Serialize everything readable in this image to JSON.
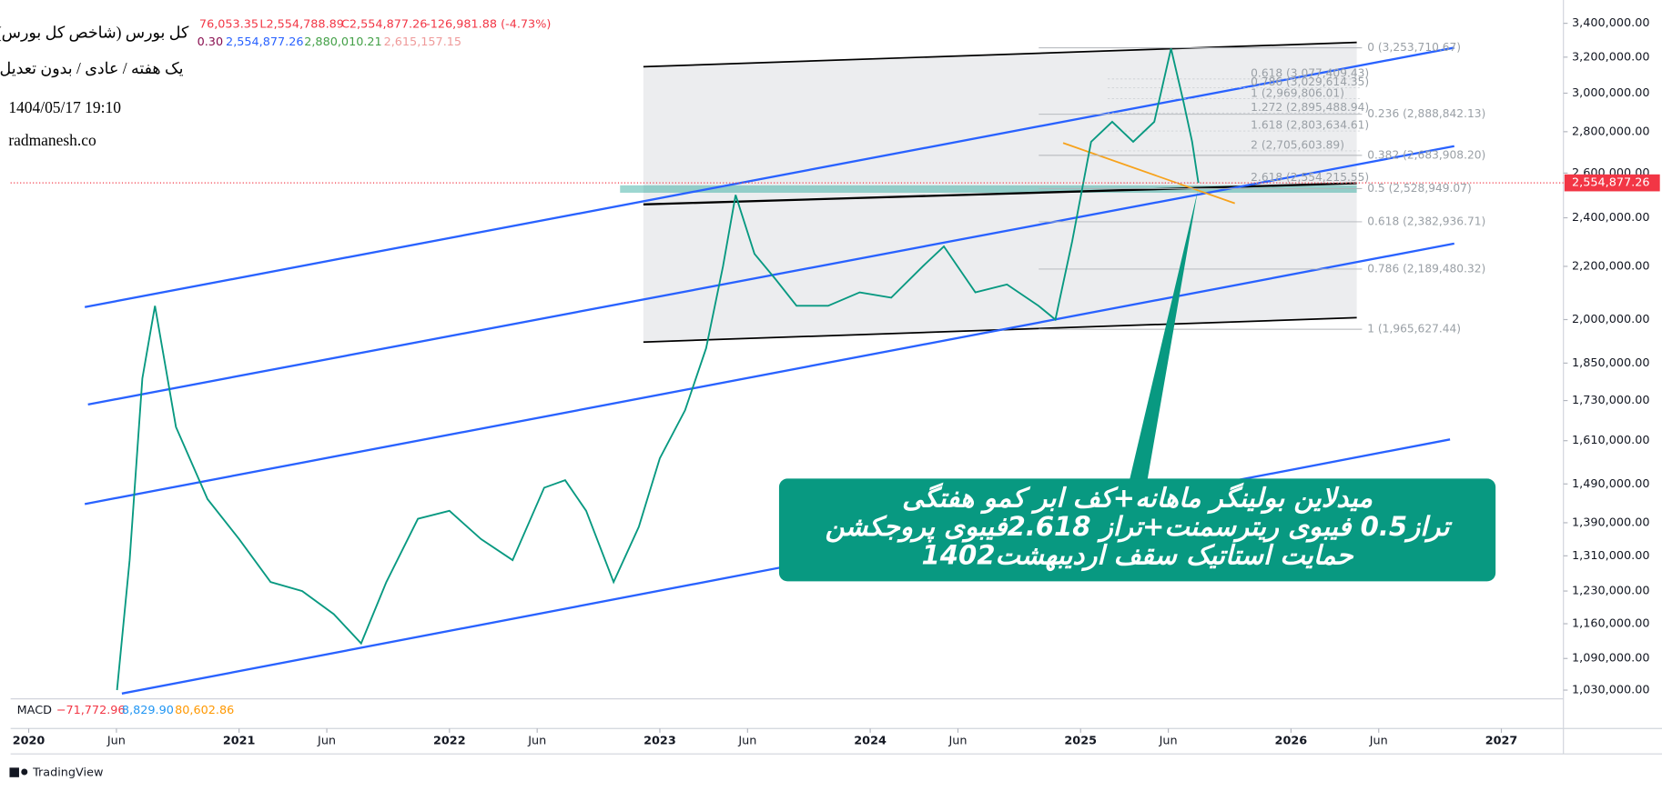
{
  "header": {
    "title": "کل بورس (شاخص کل بورس)",
    "subtitle": "یک هفته / عادی / بدون تعدیل",
    "datetime": "1404/05/17 19:10",
    "site": "radmanesh.co",
    "ohlc": [
      "76,053.35",
      "L2,554,788.89",
      "C2,554,877.26",
      "-126,981.88 (-4.73%)"
    ],
    "indicators": [
      "0.30",
      "2,554,877.26",
      "2,880,010.21",
      "2,615,157.15"
    ]
  },
  "chart_data": {
    "type": "line",
    "color": "#089981",
    "log_scale": true,
    "x": [
      2020.42,
      2020.48,
      2020.54,
      2020.6,
      2020.7,
      2020.85,
      2021.0,
      2021.15,
      2021.3,
      2021.45,
      2021.58,
      2021.7,
      2021.85,
      2022.0,
      2022.15,
      2022.3,
      2022.45,
      2022.55,
      2022.65,
      2022.78,
      2022.9,
      2023.0,
      2023.12,
      2023.22,
      2023.3,
      2023.36,
      2023.45,
      2023.55,
      2023.65,
      2023.8,
      2023.95,
      2024.1,
      2024.25,
      2024.35,
      2024.5,
      2024.65,
      2024.8,
      2024.88,
      2024.96,
      2025.05,
      2025.15,
      2025.25,
      2025.35,
      2025.43,
      2025.49,
      2025.53,
      2025.56
    ],
    "values": [
      1030000,
      1300000,
      1800000,
      2050000,
      1650000,
      1450000,
      1350000,
      1250000,
      1230000,
      1180000,
      1120000,
      1250000,
      1400000,
      1420000,
      1350000,
      1300000,
      1480000,
      1500000,
      1420000,
      1250000,
      1380000,
      1560000,
      1700000,
      1900000,
      2200000,
      2500000,
      2250000,
      2150000,
      2050000,
      2050000,
      2100000,
      2080000,
      2200000,
      2280000,
      2100000,
      2130000,
      2050000,
      2000000,
      2300000,
      2750000,
      2850000,
      2750000,
      2850000,
      3250000,
      2950000,
      2750000,
      2554877.26
    ],
    "xlim": [
      2019.914,
      2027.295
    ],
    "xticks": [
      {
        "value": 2020,
        "label": "2020"
      },
      {
        "value": 2020.417,
        "label": "Jun"
      },
      {
        "value": 2021,
        "label": "2021"
      },
      {
        "value": 2021.417,
        "label": "Jun"
      },
      {
        "value": 2022,
        "label": "2022"
      },
      {
        "value": 2022.417,
        "label": "Jun"
      },
      {
        "value": 2023,
        "label": "2023"
      },
      {
        "value": 2023.417,
        "label": "Jun"
      },
      {
        "value": 2024,
        "label": "2024"
      },
      {
        "value": 2024.417,
        "label": "Jun"
      },
      {
        "value": 2025,
        "label": "2025"
      },
      {
        "value": 2025.417,
        "label": "Jun"
      },
      {
        "value": 2026,
        "label": "2026"
      },
      {
        "value": 2026.417,
        "label": "Jun"
      },
      {
        "value": 2027,
        "label": "2027"
      }
    ],
    "ylim": [
      1014000,
      3478000
    ],
    "yticks": [
      {
        "value": 3400000,
        "label": "3,400,000.00"
      },
      {
        "value": 3200000,
        "label": "3,200,000.00"
      },
      {
        "value": 3000000,
        "label": "3,000,000.00"
      },
      {
        "value": 2800000,
        "label": "2,800,000.00"
      },
      {
        "value": 2600000,
        "label": "2,600,000.00"
      },
      {
        "value": 2400000,
        "label": "2,400,000.00"
      },
      {
        "value": 2200000,
        "label": "2,200,000.00"
      },
      {
        "value": 2000000,
        "label": "2,000,000.00"
      },
      {
        "value": 1850000,
        "label": "1,850,000.00"
      },
      {
        "value": 1730000,
        "label": "1,730,000.00"
      },
      {
        "value": 1610000,
        "label": "1,610,000.00"
      },
      {
        "value": 1490000,
        "label": "1,490,000.00"
      },
      {
        "value": 1390000,
        "label": "1,390,000.00"
      },
      {
        "value": 1310000,
        "label": "1,310,000.00"
      },
      {
        "value": 1230000,
        "label": "1,230,000.00"
      },
      {
        "value": 1160000,
        "label": "1,160,000.00"
      },
      {
        "value": 1090000,
        "label": "1,090,000.00"
      },
      {
        "value": 1030000,
        "label": "1,030,000.00"
      }
    ],
    "last_price": {
      "value": 2554877.26,
      "label": "2,554,877.26"
    },
    "fib_retracement": [
      {
        "value": 3253710.67,
        "label": "0 (3,253,710.67)"
      },
      {
        "value": 2888842.13,
        "label": "0.236 (2,888,842.13)"
      },
      {
        "value": 2683908.2,
        "label": "0.382 (2,683,908.20)"
      },
      {
        "value": 2528949.07,
        "label": "0.5 (2,528,949.07)"
      },
      {
        "value": 2382936.71,
        "label": "0.618 (2,382,936.71)"
      },
      {
        "value": 2189480.32,
        "label": "0.786 (2,189,480.32)"
      },
      {
        "value": 1965627.44,
        "label": "1 (1,965,627.44)"
      }
    ],
    "fib_extension": [
      {
        "value": 3077409.43,
        "label": "0.618 (3,077,409.43)"
      },
      {
        "value": 3029614.35,
        "label": "0.786 (3,029,614.35)"
      },
      {
        "value": 2969806.01,
        "label": "1 (2,969,806.01)"
      },
      {
        "value": 2895488.94,
        "label": "1.272 (2,895,488.94)"
      },
      {
        "value": 2803634.61,
        "label": "1.618 (2,803,634.61)"
      },
      {
        "value": 2705603.89,
        "label": "2 (2,705,603.89)"
      },
      {
        "value": 2554215.55,
        "label": "2.618 (2,554,215.55)"
      }
    ],
    "annotation": [
      "میدلاین بولینگر ماهانه+کف ابر کمو هفتگی",
      "تراز0.5 فیبوی ریترسمنت+تراز 2.618فیبوی پروجکشن",
      "حمایت استاتیک سقف اردیبهشت1402"
    ]
  },
  "macd": {
    "name": "MACD",
    "values": [
      "−71,772.96",
      "8,829.90",
      "80,602.86"
    ]
  },
  "footer": {
    "brand": "TradingView"
  }
}
